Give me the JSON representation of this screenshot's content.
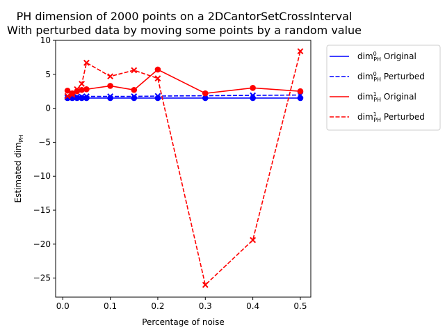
{
  "chart_data": {
    "type": "line",
    "title_line1": "PH dimension of 2000 points on a 2DCantorSetCrossInterval",
    "title_line2": "With perturbed data by moving some points by a random value",
    "xlabel": "Percentage of noise",
    "ylabel_base": "Estimated dim",
    "ylabel_sub": "PH",
    "xlim": [
      -0.015,
      0.522
    ],
    "ylim": [
      -27.8,
      10.0
    ],
    "xticks": [
      0.0,
      0.1,
      0.2,
      0.3,
      0.4,
      0.5
    ],
    "xtick_labels": [
      "0.0",
      "0.1",
      "0.2",
      "0.3",
      "0.4",
      "0.5"
    ],
    "yticks": [
      10,
      5,
      0,
      -5,
      -10,
      -15,
      -20,
      -25
    ],
    "ytick_labels": [
      "10",
      "5",
      "0",
      "−5",
      "−10",
      "−15",
      "−20",
      "−25"
    ],
    "legend_position": "outside-right",
    "x": [
      0.01,
      0.02,
      0.03,
      0.04,
      0.05,
      0.1,
      0.15,
      0.2,
      0.3,
      0.4,
      0.5
    ],
    "series": [
      {
        "name_base": "dim",
        "name_sup": "0",
        "name_sub": "PH",
        "name_suffix": " Original",
        "color": "#0000ff",
        "style": "solid",
        "marker": "circle",
        "values": [
          1.5,
          1.5,
          1.5,
          1.5,
          1.5,
          1.5,
          1.5,
          1.5,
          1.5,
          1.5,
          1.5
        ]
      },
      {
        "name_base": "dim",
        "name_sup": "0",
        "name_sub": "PH",
        "name_suffix": " Perturbed",
        "color": "#0000ff",
        "style": "dashed",
        "marker": "x",
        "values": [
          1.6,
          1.6,
          1.7,
          1.7,
          1.75,
          1.75,
          1.75,
          1.8,
          1.85,
          1.9,
          1.95
        ]
      },
      {
        "name_base": "dim",
        "name_sup": "1",
        "name_sub": "PH",
        "name_suffix": " Original",
        "color": "#ff0000",
        "style": "solid",
        "marker": "circle",
        "values": [
          2.6,
          2.2,
          2.5,
          2.7,
          2.8,
          3.3,
          2.7,
          5.7,
          2.2,
          3.0,
          2.5
        ]
      },
      {
        "name_base": "dim",
        "name_sup": "1",
        "name_sub": "PH",
        "name_suffix": " Perturbed",
        "color": "#ff0000",
        "style": "dashed",
        "marker": "x",
        "values": [
          1.8,
          2.0,
          2.8,
          3.6,
          6.7,
          4.7,
          5.6,
          4.4,
          -26.0,
          -19.4,
          8.4
        ]
      }
    ]
  }
}
